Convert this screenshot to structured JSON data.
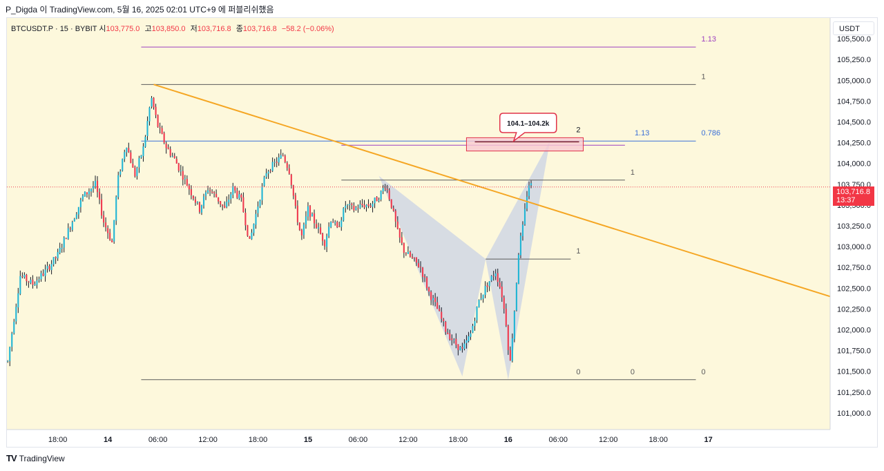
{
  "header": {
    "caption": "P_Digda 이 TradingView.com, 5월 16, 2025 02:01 UTC+9 에 퍼블리쉬했음"
  },
  "symbol": {
    "name": "BTCUSDT.P · 15 · BYBIT",
    "open_label": "시",
    "open": "103,775.0",
    "high_label": "고",
    "high": "103,850.0",
    "low_label": "저",
    "low": "103,716.8",
    "close_label": "종",
    "close": "103,716.8",
    "change": "−58.2 (−0.06%)"
  },
  "currency": "USDT",
  "last_price": {
    "value": "103,716.8",
    "countdown": "13:37"
  },
  "footer": {
    "logo": "TV",
    "brand": "TradingView"
  },
  "colors": {
    "plot_bg": "#fdf8dc",
    "up": "#22b5d4",
    "down": "#ef3b50",
    "trendline": "#f5a623",
    "fib_purple": "#9c3fbf",
    "fib_blue": "#3a6fd8",
    "fib_dark": "#5a5a5a",
    "pattern_fill": "#c9d3e6",
    "callout_border": "#e0324a"
  },
  "chart_data": {
    "type": "candlestick",
    "symbol": "BTCUSDT.P",
    "interval": "15",
    "exchange": "BYBIT",
    "y_axis": {
      "side": "right",
      "ylim": [
        100800,
        105750
      ],
      "ticks": [
        "105,500.0",
        "105,250.0",
        "105,000.0",
        "104,750.0",
        "104,500.0",
        "104,250.0",
        "104,000.0",
        "103,750.0",
        "103,500.0",
        "103,250.0",
        "103,000.0",
        "102,750.0",
        "102,500.0",
        "102,250.0",
        "102,000.0",
        "101,750.0",
        "101,500.0",
        "101,250.0",
        "101,000.0"
      ],
      "tick_values": [
        105500,
        105250,
        105000,
        104750,
        104500,
        104250,
        104000,
        103750,
        103500,
        103250,
        103000,
        102750,
        102500,
        102250,
        102000,
        101750,
        101500,
        101250,
        101000
      ]
    },
    "x_axis": {
      "ticks": [
        "18:00",
        "14",
        "06:00",
        "12:00",
        "18:00",
        "15",
        "06:00",
        "12:00",
        "18:00",
        "16",
        "06:00",
        "12:00",
        "18:00",
        "17"
      ],
      "tick_hours": [
        -6,
        0,
        6,
        12,
        18,
        24,
        30,
        36,
        42,
        48,
        54,
        60,
        66,
        72
      ],
      "bold_ticks": [
        "14",
        "15",
        "16",
        "17"
      ],
      "xlim_hours": [
        -12.1,
        86.6
      ]
    },
    "anchors": [
      [
        -12.0,
        101620
      ],
      [
        -10.5,
        102650
      ],
      [
        -9.0,
        102550
      ],
      [
        -7.5,
        102700
      ],
      [
        -6.0,
        102900
      ],
      [
        -4.5,
        103250
      ],
      [
        -3.0,
        103600
      ],
      [
        -1.5,
        103750
      ],
      [
        -0.5,
        103300
      ],
      [
        0.5,
        103050
      ],
      [
        1.2,
        103800
      ],
      [
        2.2,
        104250
      ],
      [
        3.2,
        103850
      ],
      [
        4.3,
        104200
      ],
      [
        5.2,
        104800
      ],
      [
        6.0,
        104450
      ],
      [
        7.0,
        104200
      ],
      [
        8.0,
        104050
      ],
      [
        9.0,
        103850
      ],
      [
        10.0,
        103650
      ],
      [
        11.0,
        103450
      ],
      [
        12.0,
        103700
      ],
      [
        13.0,
        103600
      ],
      [
        14.0,
        103450
      ],
      [
        15.0,
        103700
      ],
      [
        16.0,
        103550
      ],
      [
        17.0,
        103050
      ],
      [
        18.0,
        103500
      ],
      [
        19.0,
        103900
      ],
      [
        20.0,
        104000
      ],
      [
        21.0,
        104100
      ],
      [
        21.8,
        103900
      ],
      [
        22.5,
        103450
      ],
      [
        23.2,
        103100
      ],
      [
        24.0,
        103450
      ],
      [
        25.0,
        103250
      ],
      [
        26.0,
        103050
      ],
      [
        26.8,
        103350
      ],
      [
        27.5,
        103200
      ],
      [
        28.5,
        103500
      ],
      [
        29.5,
        103450
      ],
      [
        30.5,
        103500
      ],
      [
        31.5,
        103500
      ],
      [
        32.5,
        103600
      ],
      [
        33.3,
        103750
      ],
      [
        34.0,
        103500
      ],
      [
        34.8,
        103150
      ],
      [
        35.5,
        102950
      ],
      [
        36.5,
        102850
      ],
      [
        37.5,
        102750
      ],
      [
        38.5,
        102450
      ],
      [
        39.5,
        102250
      ],
      [
        40.5,
        102000
      ],
      [
        41.5,
        101850
      ],
      [
        42.5,
        101750
      ],
      [
        43.5,
        101950
      ],
      [
        44.5,
        102350
      ],
      [
        45.5,
        102550
      ],
      [
        46.5,
        102700
      ],
      [
        47.2,
        102450
      ],
      [
        47.8,
        102050
      ],
      [
        48.2,
        101550
      ],
      [
        48.8,
        102300
      ],
      [
        49.3,
        103000
      ],
      [
        49.8,
        103250
      ],
      [
        50.2,
        103600
      ],
      [
        50.6,
        103800
      ],
      [
        50.8,
        103717
      ]
    ],
    "trendline": {
      "from": [
        5.5,
        104950
      ],
      "to": [
        86.6,
        102400
      ]
    },
    "fib_levels": [
      {
        "label": "1.13",
        "value": 105400,
        "from_h": 4.0,
        "to_h": 70.5,
        "color": "purple"
      },
      {
        "label": "1",
        "value": 104950,
        "from_h": 4.0,
        "to_h": 70.5,
        "color": "dark"
      },
      {
        "label": "1.13",
        "value": 104270,
        "from_h": 4.0,
        "to_h": 62.5,
        "color": "blue"
      },
      {
        "label": "0.786",
        "value": 104270,
        "from_h": 62.5,
        "to_h": 70.5,
        "color": "blue"
      },
      {
        "label": "0",
        "value": 101400,
        "from_h": 4.0,
        "to_h": 70.5,
        "color": "dark"
      }
    ],
    "harmonic": {
      "points": [
        [
          32.5,
          103850
        ],
        [
          42.5,
          101440
        ],
        [
          45.3,
          102850
        ],
        [
          48.0,
          101400
        ],
        [
          53.0,
          104270
        ]
      ],
      "target_zone": [
        104150,
        104310
      ],
      "target_zone_h": [
        43.0,
        57.0
      ],
      "target_label": "104.1–104.2k",
      "marker_labels": [
        "2",
        "1",
        "1",
        "0",
        "0"
      ]
    }
  }
}
